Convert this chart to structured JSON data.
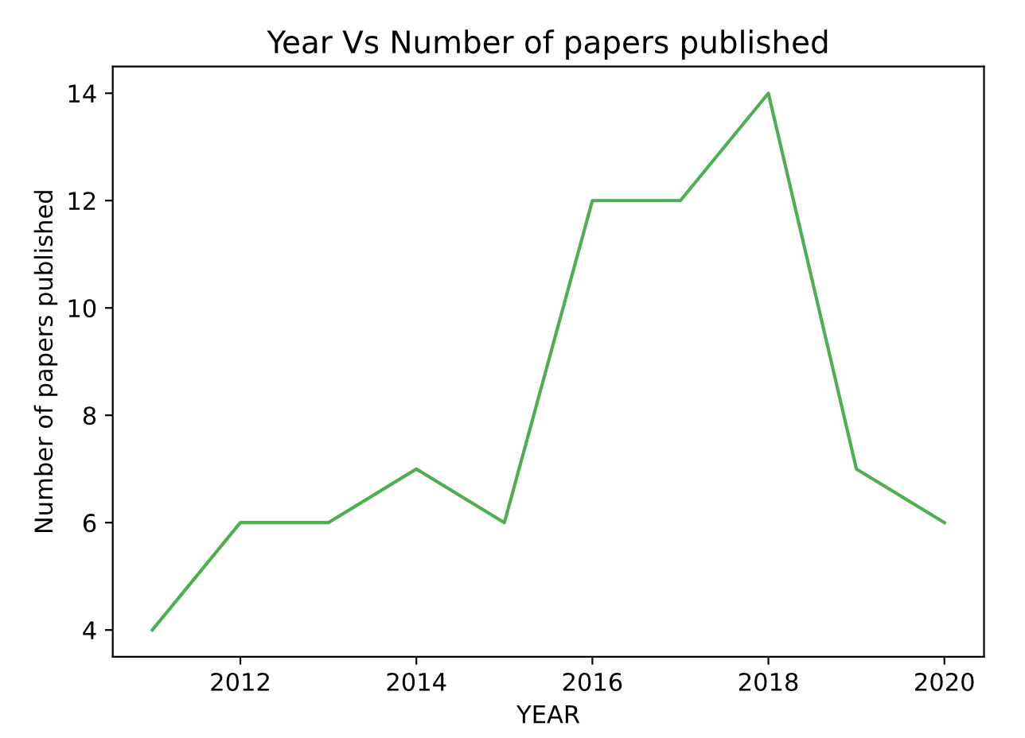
{
  "chart_data": {
    "type": "line",
    "title": "Year Vs Number of papers published",
    "xlabel": "YEAR",
    "ylabel": "Number of papers published",
    "x": [
      2011,
      2012,
      2013,
      2014,
      2015,
      2016,
      2017,
      2018,
      2019,
      2020
    ],
    "series": [
      {
        "color": "#4caf50",
        "values": [
          4,
          6,
          6,
          7,
          6,
          12,
          12,
          14,
          7,
          6
        ]
      }
    ],
    "xlim": [
      2010.55,
      2020.45
    ],
    "xticks": [
      2012,
      2014,
      2016,
      2018,
      2020
    ],
    "ylim": [
      3.5,
      14.5
    ],
    "yticks": [
      4,
      6,
      8,
      10,
      12,
      14
    ],
    "grid": false,
    "legend": false,
    "marker": "none",
    "line_style": "solid"
  }
}
